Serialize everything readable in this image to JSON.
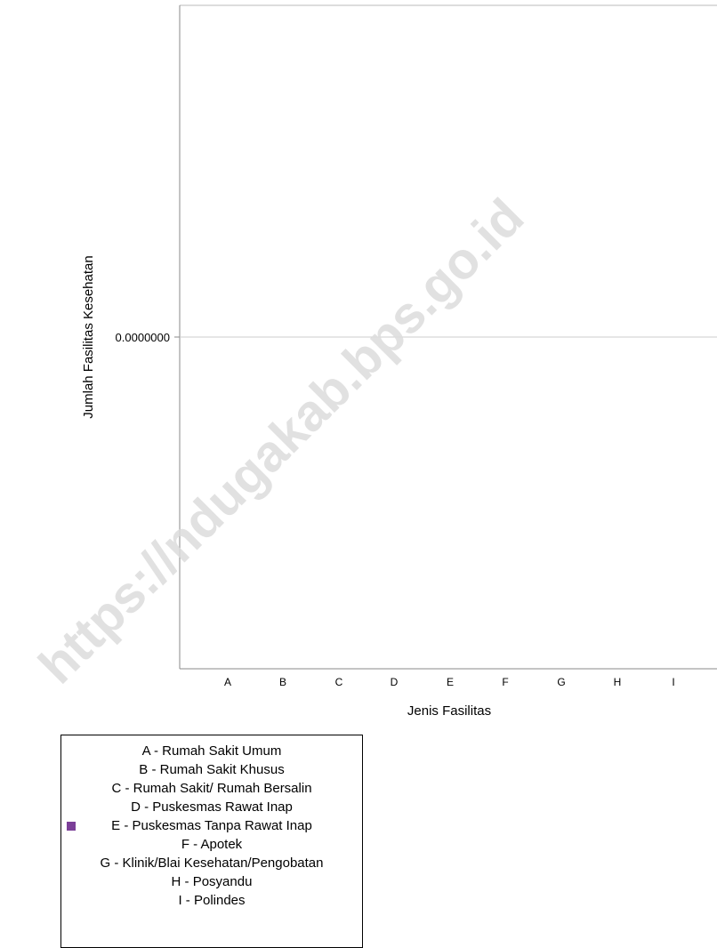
{
  "chart_data": {
    "type": "bar",
    "categories": [
      "A",
      "B",
      "C",
      "D",
      "E",
      "F",
      "G",
      "H",
      "I"
    ],
    "series": [
      {
        "values": [
          0,
          0,
          0,
          0,
          0,
          0,
          0,
          0,
          0
        ]
      }
    ],
    "title": "",
    "xlabel": "Jenis Fasilitas",
    "ylabel": "Jumlah Fasilitas Kesehatan",
    "y_ticks": [
      "0.0000000"
    ],
    "ylim": [
      -1,
      1
    ],
    "grid": false,
    "legend_placement": "bottom-left",
    "legend": [
      {
        "label": "A - Rumah Sakit Umum",
        "swatch": false
      },
      {
        "label": "B - Rumah Sakit Khusus",
        "swatch": false
      },
      {
        "label": "C - Rumah Sakit/ Rumah Bersalin",
        "swatch": false
      },
      {
        "label": "D - Puskesmas Rawat Inap",
        "swatch": false
      },
      {
        "label": "E - Puskesmas Tanpa Rawat Inap",
        "swatch": true
      },
      {
        "label": "F - Apotek",
        "swatch": false
      },
      {
        "label": "G - Klinik/Blai Kesehatan/Pengobatan",
        "swatch": false
      },
      {
        "label": "H - Posyandu",
        "swatch": false
      },
      {
        "label": "I - Polindes",
        "swatch": false
      }
    ]
  },
  "colors": {
    "swatch": "#7b3f98",
    "axis": "#888888",
    "zero_line": "#cccccc",
    "watermark": "#dcdcdc"
  },
  "watermark": "https://ndugakab.bps.go.id"
}
